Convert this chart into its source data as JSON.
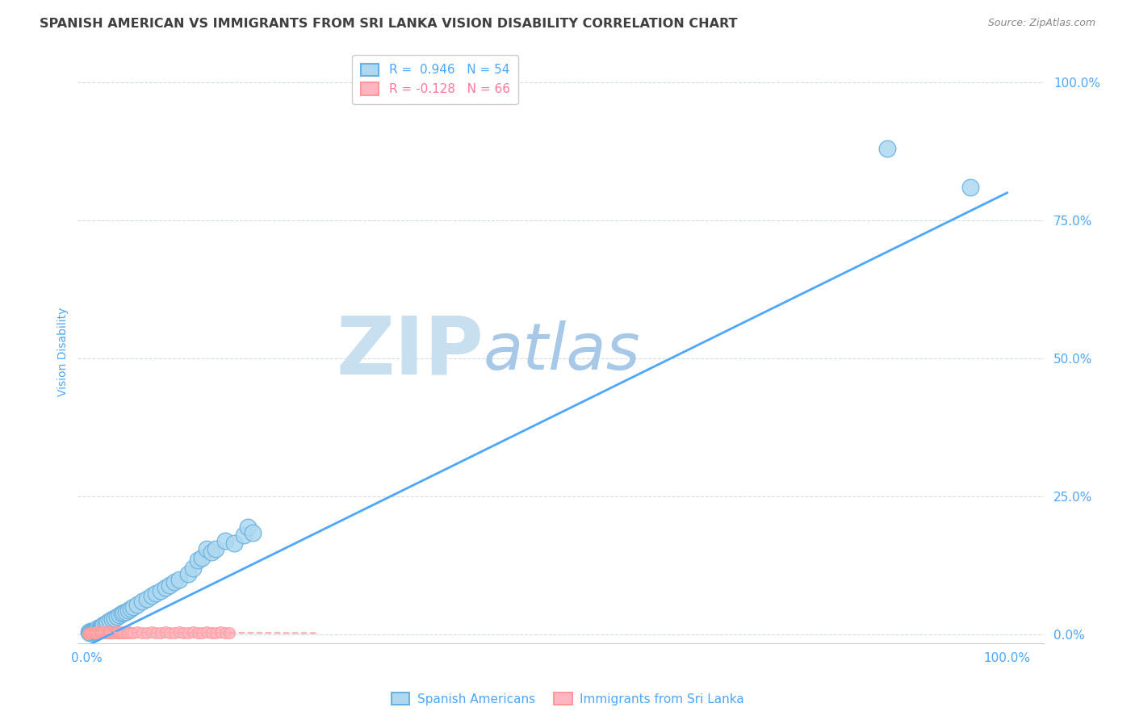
{
  "title": "SPANISH AMERICAN VS IMMIGRANTS FROM SRI LANKA VISION DISABILITY CORRELATION CHART",
  "source": "Source: ZipAtlas.com",
  "ylabel": "Vision Disability",
  "watermark_zip": "ZIP",
  "watermark_atlas": "atlas",
  "legend_blue_r": "R =  0.946",
  "legend_blue_n": "N = 54",
  "legend_pink_r": "R = -0.128",
  "legend_pink_n": "N = 66",
  "ytick_labels": [
    "0.0%",
    "25.0%",
    "50.0%",
    "75.0%",
    "100.0%"
  ],
  "ytick_values": [
    0.0,
    0.25,
    0.5,
    0.75,
    1.0
  ],
  "xtick_values": [
    0.0,
    0.25,
    0.5,
    0.75,
    1.0
  ],
  "blue_scatter_x": [
    0.002,
    0.003,
    0.004,
    0.005,
    0.006,
    0.007,
    0.008,
    0.009,
    0.01,
    0.011,
    0.012,
    0.013,
    0.014,
    0.015,
    0.016,
    0.017,
    0.018,
    0.02,
    0.022,
    0.025,
    0.027,
    0.03,
    0.033,
    0.035,
    0.038,
    0.04,
    0.042,
    0.045,
    0.048,
    0.05,
    0.055,
    0.06,
    0.065,
    0.07,
    0.075,
    0.08,
    0.085,
    0.09,
    0.095,
    0.1,
    0.11,
    0.115,
    0.12,
    0.125,
    0.13,
    0.135,
    0.14,
    0.15,
    0.16,
    0.17,
    0.175,
    0.18,
    0.96,
    0.87
  ],
  "blue_scatter_y": [
    0.005,
    0.004,
    0.006,
    0.005,
    0.007,
    0.006,
    0.008,
    0.007,
    0.01,
    0.009,
    0.012,
    0.011,
    0.013,
    0.014,
    0.015,
    0.016,
    0.018,
    0.02,
    0.022,
    0.025,
    0.028,
    0.03,
    0.033,
    0.035,
    0.038,
    0.04,
    0.042,
    0.045,
    0.048,
    0.05,
    0.055,
    0.06,
    0.065,
    0.07,
    0.075,
    0.08,
    0.085,
    0.09,
    0.095,
    0.1,
    0.11,
    0.12,
    0.135,
    0.14,
    0.155,
    0.15,
    0.155,
    0.17,
    0.165,
    0.18,
    0.195,
    0.185,
    0.81,
    0.88
  ],
  "pink_scatter_x": [
    0.001,
    0.002,
    0.003,
    0.004,
    0.005,
    0.006,
    0.007,
    0.008,
    0.009,
    0.01,
    0.011,
    0.012,
    0.013,
    0.014,
    0.015,
    0.016,
    0.017,
    0.018,
    0.019,
    0.02,
    0.021,
    0.022,
    0.023,
    0.024,
    0.025,
    0.026,
    0.027,
    0.028,
    0.029,
    0.03,
    0.031,
    0.032,
    0.033,
    0.034,
    0.035,
    0.036,
    0.037,
    0.038,
    0.039,
    0.04,
    0.042,
    0.044,
    0.046,
    0.048,
    0.05,
    0.055,
    0.06,
    0.065,
    0.07,
    0.075,
    0.08,
    0.085,
    0.09,
    0.095,
    0.1,
    0.105,
    0.11,
    0.115,
    0.12,
    0.125,
    0.13,
    0.135,
    0.14,
    0.145,
    0.15,
    0.155
  ],
  "pink_scatter_y": [
    0.002,
    0.002,
    0.003,
    0.003,
    0.004,
    0.003,
    0.004,
    0.004,
    0.003,
    0.005,
    0.004,
    0.003,
    0.005,
    0.004,
    0.003,
    0.005,
    0.004,
    0.003,
    0.005,
    0.004,
    0.003,
    0.005,
    0.004,
    0.003,
    0.005,
    0.004,
    0.003,
    0.005,
    0.004,
    0.003,
    0.005,
    0.004,
    0.003,
    0.005,
    0.004,
    0.003,
    0.005,
    0.004,
    0.003,
    0.005,
    0.004,
    0.003,
    0.005,
    0.004,
    0.003,
    0.005,
    0.004,
    0.003,
    0.005,
    0.004,
    0.003,
    0.005,
    0.004,
    0.003,
    0.005,
    0.004,
    0.003,
    0.005,
    0.004,
    0.003,
    0.005,
    0.004,
    0.003,
    0.005,
    0.004,
    0.003
  ],
  "blue_line_x0": 0.0,
  "blue_line_y0": -0.02,
  "blue_line_x1": 1.0,
  "blue_line_y1": 0.8,
  "pink_line_x0": 0.0,
  "pink_line_y0": 0.004,
  "pink_line_x1": 0.25,
  "pink_line_y1": 0.003,
  "blue_line_color": "#4da6ff",
  "pink_line_color": "#ffaaaa",
  "blue_scatter_color": "#add8f0",
  "pink_scatter_color": "#ffb6c1",
  "blue_edge_color": "#6ab0e0",
  "pink_edge_color": "#ff9999",
  "grid_color": "#d0d8e0",
  "title_color": "#404040",
  "axis_label_color": "#4da6ff",
  "background_color": "#ffffff",
  "watermark_color_zip": "#c8dff0",
  "watermark_color_atlas": "#a8c8e8",
  "title_fontsize": 11.5,
  "source_fontsize": 9,
  "legend_fontsize": 11,
  "axis_label_fontsize": 10,
  "tick_fontsize": 11
}
